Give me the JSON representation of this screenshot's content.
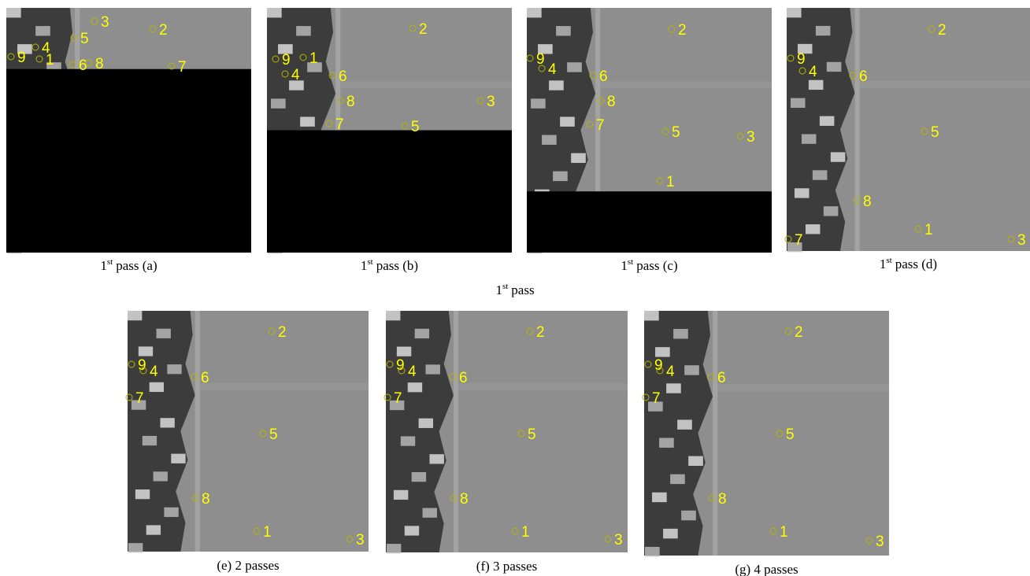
{
  "panels": [
    {
      "caption": {
        "number": "1",
        "sup": "st",
        "text": "pass (a)"
      },
      "markers": [
        "9",
        "4",
        "1",
        "5",
        "6",
        "3",
        "2",
        "7",
        "8"
      ]
    },
    {
      "caption": {
        "number": "1",
        "sup": "st",
        "text": "pass (b)"
      },
      "markers": [
        "2",
        "9",
        "1",
        "4",
        "6",
        "8",
        "7",
        "5",
        "3"
      ]
    },
    {
      "caption": {
        "number": "1",
        "sup": "st",
        "text": "pass (c)"
      },
      "markers": [
        "2",
        "9",
        "4",
        "6",
        "8",
        "7",
        "5",
        "3",
        "1"
      ]
    },
    {
      "caption": {
        "number": "1",
        "sup": "st",
        "text": "pass (d)"
      },
      "markers": [
        "2",
        "9",
        "4",
        "6",
        "5",
        "8",
        "7",
        "1",
        "3"
      ]
    },
    {
      "caption": {
        "text": "(e) 2 passes"
      },
      "markers": [
        "2",
        "9",
        "4",
        "6",
        "7",
        "5",
        "8",
        "1",
        "3"
      ]
    },
    {
      "caption": {
        "text": "(f) 3 passes"
      },
      "markers": [
        "2",
        "9",
        "4",
        "6",
        "7",
        "5",
        "8",
        "1",
        "3"
      ]
    },
    {
      "caption": {
        "text": "(g) 4 passes"
      },
      "markers": [
        "2",
        "9",
        "4",
        "6",
        "7",
        "5",
        "8",
        "1",
        "3"
      ]
    }
  ],
  "group_label": {
    "number": "1",
    "sup": "st",
    "text": "pass"
  }
}
